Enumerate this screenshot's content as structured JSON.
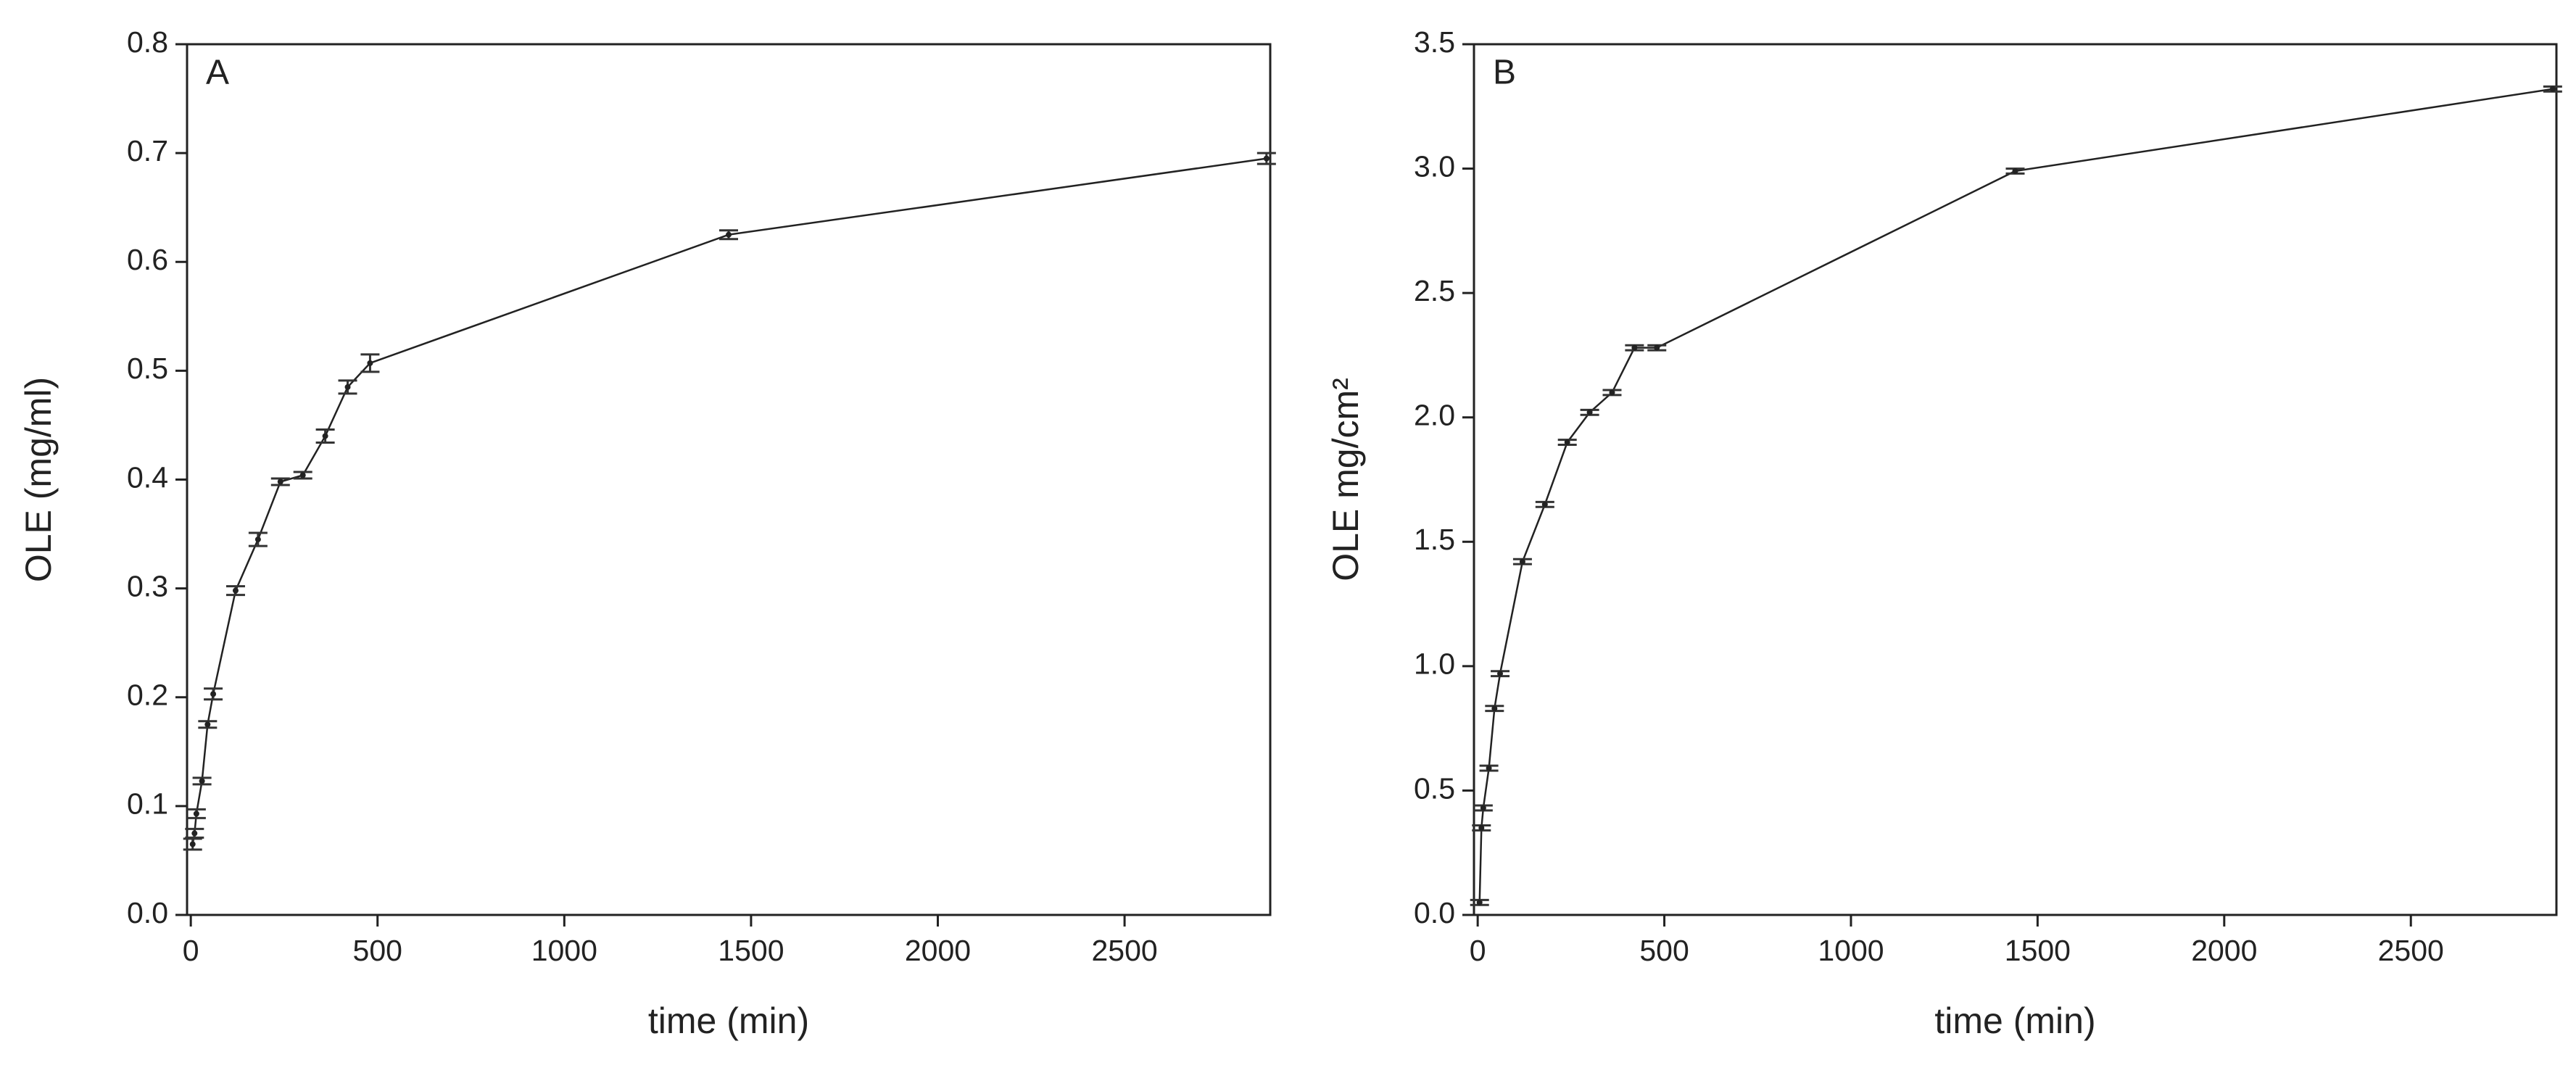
{
  "chart_data": [
    {
      "type": "line",
      "label": "A",
      "x_label": "time (min)",
      "y_label": "OLE (mg/ml)",
      "x": [
        5,
        10,
        15,
        30,
        45,
        60,
        120,
        180,
        240,
        300,
        360,
        420,
        480,
        1440,
        2880
      ],
      "values": [
        0.065,
        0.075,
        0.093,
        0.123,
        0.175,
        0.203,
        0.298,
        0.345,
        0.398,
        0.404,
        0.44,
        0.485,
        0.507,
        0.625,
        0.695
      ],
      "errors": [
        0.005,
        0.004,
        0.004,
        0.003,
        0.003,
        0.005,
        0.004,
        0.006,
        0.003,
        0.003,
        0.006,
        0.006,
        0.008,
        0.004,
        0.005
      ],
      "color": "#222222",
      "xlim": [
        -10,
        2890
      ],
      "xticks": [
        0,
        500,
        1000,
        1500,
        2000,
        2500
      ],
      "ylim": [
        0,
        0.8
      ],
      "yticks": [
        {
          "value": 0,
          "label": "0.0"
        },
        0.1,
        0.2,
        0.3,
        0.4,
        0.5,
        0.6,
        0.7,
        0.8
      ]
    },
    {
      "type": "line",
      "label": "B",
      "x_label": "time (min)",
      "y_label": "OLE mg/cm²",
      "x": [
        5,
        10,
        15,
        30,
        45,
        60,
        120,
        180,
        240,
        300,
        360,
        420,
        480,
        1440,
        2880
      ],
      "values": [
        0.05,
        0.35,
        0.43,
        0.59,
        0.83,
        0.97,
        1.42,
        1.65,
        1.9,
        2.02,
        2.1,
        2.28,
        2.28,
        2.99,
        3.32
      ],
      "errors": [
        0.01,
        0.01,
        0.01,
        0.01,
        0.01,
        0.01,
        0.01,
        0.01,
        0.01,
        0.01,
        0.01,
        0.01,
        0.01,
        0.01,
        0.01
      ],
      "color": "#222222",
      "xlim": [
        -10,
        2890
      ],
      "xticks": [
        0,
        500,
        1000,
        1500,
        2000,
        2500
      ],
      "ylim": [
        0,
        3.5
      ],
      "yticks": [
        {
          "value": 0,
          "label": "0.0"
        },
        0.5,
        {
          "value": 1,
          "label": "1.0"
        },
        1.5,
        {
          "value": 2,
          "label": "2.0"
        },
        2.5,
        {
          "value": 3,
          "label": "3.0"
        },
        3.5
      ]
    }
  ]
}
